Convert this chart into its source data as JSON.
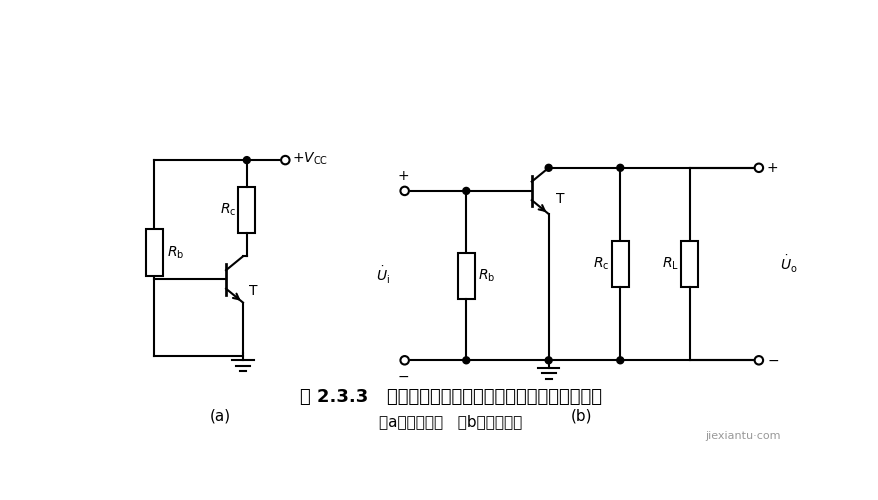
{
  "bg_color": "#ffffff",
  "line_color": "#000000",
  "line_width": 1.5,
  "caption_main": "图 2.3.3   阻容耦合共射放大电路的直流通路和交流通路",
  "caption_sub": "（a）直流通路   （b）交流通路",
  "watermark": "jiexiantu·com",
  "label_a": "(a)",
  "label_b": "(b)"
}
